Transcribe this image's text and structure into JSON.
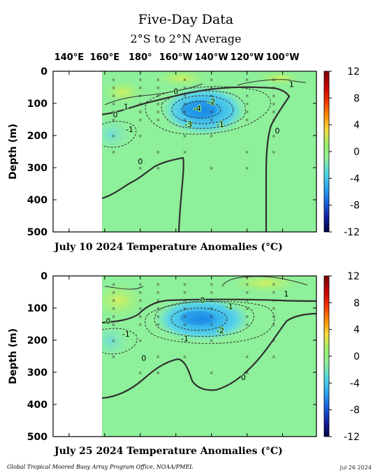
{
  "title": "Five-Day Data",
  "subtitle": "2°S to 2°N Average",
  "footer": {
    "credit": "Global Tropical Moored Buoy Array Program Office, NOAA/PMEL",
    "date": "Jul 26 2024"
  },
  "colorbar": {
    "ticks": [
      12,
      8,
      4,
      0,
      -4,
      -8,
      -12
    ],
    "colors": [
      "#7a0000",
      "#c40000",
      "#f03000",
      "#ff8a00",
      "#f8dc3c",
      "#9bef6a",
      "#8ef09a",
      "#4fd8e8",
      "#2aa8f0",
      "#1860e0",
      "#1020a0",
      "#000040"
    ]
  },
  "chart_data": [
    {
      "type": "heatmap",
      "panel_label": "July 10 2024 Temperature Anomalies (°C)",
      "ylabel": "Depth (m)",
      "x_ticks": [
        "140°E",
        "160°E",
        "180°",
        "160°W",
        "140°W",
        "120°W",
        "100°W"
      ],
      "y_ticks": [
        0,
        100,
        200,
        300,
        400,
        500
      ],
      "ylim": [
        0,
        500
      ],
      "zlim": [
        -12,
        12
      ],
      "contour_labels": [
        {
          "text": "1",
          "lon": 265,
          "depth": 40
        },
        {
          "text": "0",
          "lon": 200,
          "depth": 62
        },
        {
          "text": "1",
          "lon": 172,
          "depth": 110
        },
        {
          "text": "0",
          "lon": 166,
          "depth": 135
        },
        {
          "text": "-4",
          "lon": 212,
          "depth": 115
        },
        {
          "text": "-2",
          "lon": 220,
          "depth": 95
        },
        {
          "text": "-3",
          "lon": 207,
          "depth": 165
        },
        {
          "text": "-1",
          "lon": 225,
          "depth": 165
        },
        {
          "text": "-1",
          "lon": 174,
          "depth": 180
        },
        {
          "text": "0",
          "lon": 180,
          "depth": 280
        },
        {
          "text": "0",
          "lon": 257,
          "depth": 185
        }
      ]
    },
    {
      "type": "heatmap",
      "panel_label": "July 25 2024 Temperature Anomalies (°C)",
      "ylabel": "Depth (m)",
      "x_ticks": [
        "140°E",
        "160°E",
        "180°",
        "160°W",
        "140°W",
        "120°W",
        "100°W"
      ],
      "y_ticks": [
        0,
        100,
        200,
        300,
        400,
        500
      ],
      "ylim": [
        0,
        500
      ],
      "zlim": [
        -12,
        12
      ],
      "contour_labels": [
        {
          "text": "1",
          "lon": 262,
          "depth": 55
        },
        {
          "text": "0",
          "lon": 215,
          "depth": 75
        },
        {
          "text": "-1",
          "lon": 230,
          "depth": 95
        },
        {
          "text": "0",
          "lon": 162,
          "depth": 140
        },
        {
          "text": "-2",
          "lon": 225,
          "depth": 170
        },
        {
          "text": "-1",
          "lon": 172,
          "depth": 180
        },
        {
          "text": "-1",
          "lon": 205,
          "depth": 195
        },
        {
          "text": "0",
          "lon": 182,
          "depth": 255
        },
        {
          "text": "0",
          "lon": 238,
          "depth": 315
        }
      ]
    }
  ]
}
